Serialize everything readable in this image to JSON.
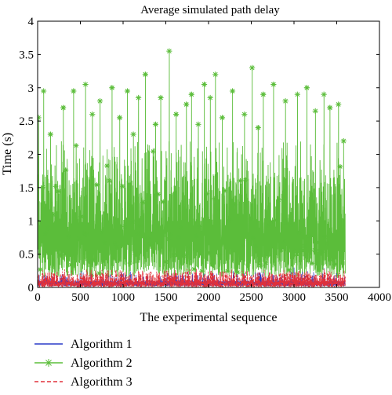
{
  "chart_data": {
    "type": "line",
    "title": "Average simulated path delay",
    "xlabel": "The experimental sequence",
    "ylabel": "Time (s)",
    "xlim": [
      0,
      4000
    ],
    "ylim": [
      0,
      4
    ],
    "x_ticks": [
      "0",
      "500",
      "1000",
      "1500",
      "2000",
      "2500",
      "3000",
      "3500",
      "4000"
    ],
    "y_ticks": [
      "0",
      "0.5",
      "1",
      "1.5",
      "2",
      "2.5",
      "3",
      "3.5",
      "4"
    ],
    "n_points": 3600,
    "grid": false,
    "legend_position": "bottom-left, outside plot area",
    "series": [
      {
        "name": "Algorithm 1",
        "color": "#2a3cc8",
        "style": "solid line",
        "typical_range": [
          0.02,
          0.25
        ],
        "peaks": [
          [
            1620,
            0.18
          ],
          [
            1700,
            0.14
          ],
          [
            3000,
            0.3
          ],
          [
            3350,
            0.29
          ],
          [
            1750,
            0.1
          ]
        ]
      },
      {
        "name": "Algorithm 2",
        "color": "#5bbd3a",
        "style": "solid line with asterisk markers",
        "typical_range": [
          0.05,
          2.0
        ],
        "peaks": [
          [
            10,
            2.55
          ],
          [
            70,
            2.95
          ],
          [
            150,
            2.3
          ],
          [
            300,
            2.7
          ],
          [
            420,
            2.95
          ],
          [
            560,
            3.05
          ],
          [
            640,
            2.6
          ],
          [
            730,
            2.8
          ],
          [
            870,
            3.0
          ],
          [
            960,
            2.55
          ],
          [
            1050,
            2.95
          ],
          [
            1120,
            2.3
          ],
          [
            1180,
            2.85
          ],
          [
            1260,
            3.2
          ],
          [
            1380,
            2.45
          ],
          [
            1440,
            2.85
          ],
          [
            1540,
            3.55
          ],
          [
            1620,
            2.6
          ],
          [
            1740,
            2.75
          ],
          [
            1800,
            2.9
          ],
          [
            1880,
            2.45
          ],
          [
            1950,
            3.05
          ],
          [
            2020,
            2.85
          ],
          [
            2080,
            3.2
          ],
          [
            2160,
            2.55
          ],
          [
            2280,
            2.95
          ],
          [
            2420,
            2.6
          ],
          [
            2510,
            3.3
          ],
          [
            2580,
            2.4
          ],
          [
            2640,
            2.9
          ],
          [
            2760,
            3.05
          ],
          [
            2900,
            2.8
          ],
          [
            3040,
            2.9
          ],
          [
            3150,
            3.0
          ],
          [
            3250,
            2.65
          ],
          [
            3350,
            2.9
          ],
          [
            3420,
            2.7
          ],
          [
            3520,
            2.75
          ],
          [
            3580,
            2.2
          ]
        ]
      },
      {
        "name": "Algorithm 3",
        "color": "#e0303a",
        "style": "dashed line",
        "typical_range": [
          0.0,
          0.28
        ],
        "peaks": [
          [
            1700,
            0.1
          ],
          [
            1800,
            0.12
          ]
        ]
      }
    ]
  }
}
